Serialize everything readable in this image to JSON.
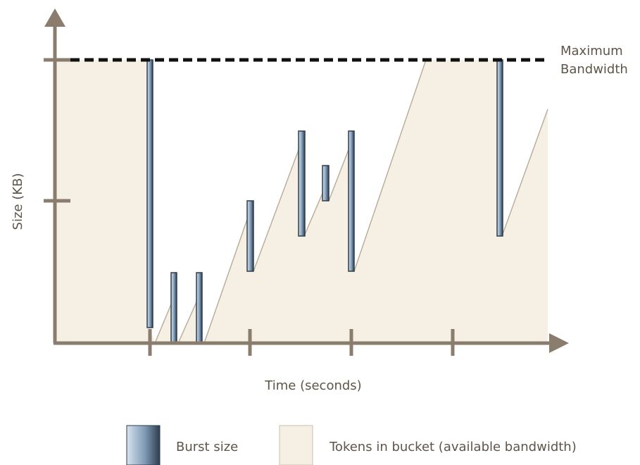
{
  "labels": {
    "y_axis": "Size (KB)",
    "x_axis": "Time (seconds)",
    "max_line_1": "Maximum",
    "max_line_2": "Bandwidth"
  },
  "legend": {
    "burst": "Burst size",
    "tokens": "Tokens in bucket (available bandwidth)"
  },
  "colors": {
    "axis": "#8a7d6e",
    "token_area": "#f5f0e3",
    "burst_dark": "#2e3d4d",
    "burst_light": "#d7e3ef",
    "max_line": "#111111"
  }
}
